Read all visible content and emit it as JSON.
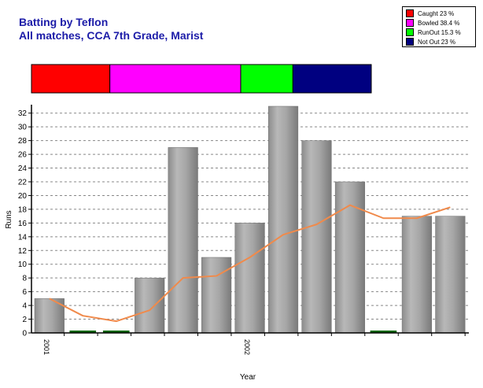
{
  "header": {
    "title": "Batting by Teflon",
    "subtitle": "All matches, CCA 7th Grade, Marist"
  },
  "legend": {
    "items": [
      {
        "label": "Caught 23 %",
        "color": "#ff0000",
        "share": 23
      },
      {
        "label": "Bowled 38.4 %",
        "color": "#ff00ff",
        "share": 38.4
      },
      {
        "label": "RunOut 15.3 %",
        "color": "#00ff00",
        "share": 15.3
      },
      {
        "label": "Not Out 23 %",
        "color": "#000080",
        "share": 23
      }
    ]
  },
  "chart_data": {
    "type": "bar",
    "title": "",
    "xlabel": "Year",
    "ylabel": "Runs",
    "ylim": [
      0,
      33
    ],
    "yticks": [
      0,
      2,
      4,
      6,
      8,
      10,
      12,
      14,
      16,
      18,
      20,
      22,
      24,
      26,
      28,
      30,
      32
    ],
    "grid": true,
    "legend_position": "top-right",
    "x_tick_labels": [
      {
        "label": "2001",
        "index": 0
      },
      {
        "label": "2002",
        "index": 6
      }
    ],
    "series": [
      {
        "kind": "bar",
        "values": [
          5,
          0,
          0,
          8,
          27,
          11,
          16,
          33,
          28,
          22,
          0,
          17,
          17
        ],
        "color": "#999999",
        "zero_color": "#006400"
      },
      {
        "kind": "line",
        "values": [
          5,
          2.5,
          1.7,
          3.3,
          8,
          8.3,
          11,
          14.3,
          15.8,
          18.6,
          16.7,
          16.7,
          18.3
        ],
        "color": "#f08a4b"
      }
    ]
  }
}
